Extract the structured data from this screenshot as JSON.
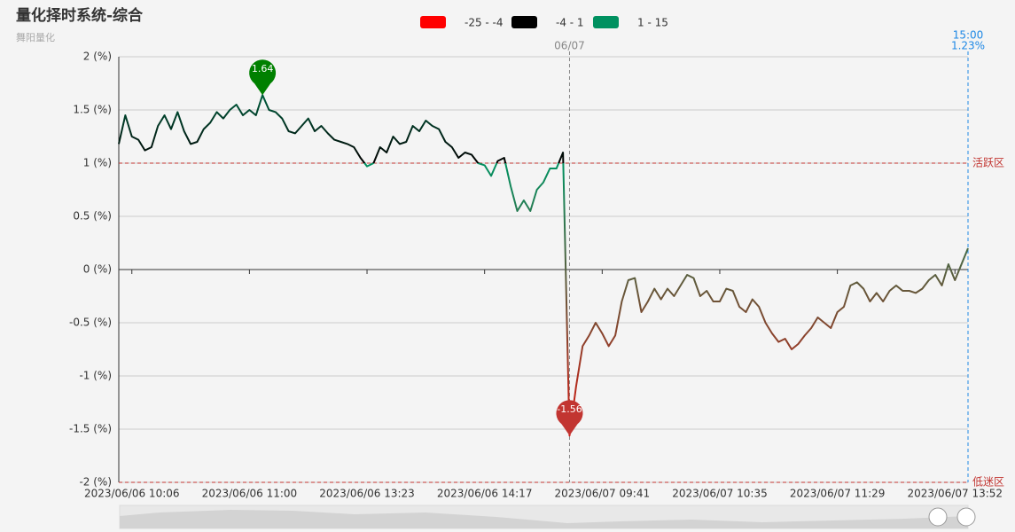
{
  "chart_data": {
    "type": "line",
    "title": "量化择时系统-综合",
    "subtitle": "舞阳量化",
    "ylim": [
      -2,
      2
    ],
    "yticks": [
      {
        "value": 2,
        "label": "2 (%)"
      },
      {
        "value": 1.5,
        "label": "1.5 (%)"
      },
      {
        "value": 1,
        "label": "1 (%)"
      },
      {
        "value": 0.5,
        "label": "0.5 (%)"
      },
      {
        "value": 0,
        "label": "0 (%)"
      },
      {
        "value": -0.5,
        "label": "-0.5 (%)"
      },
      {
        "value": -1,
        "label": "-1 (%)"
      },
      {
        "value": -1.5,
        "label": "-1.5 (%)"
      },
      {
        "value": -2,
        "label": "-2 (%)"
      }
    ],
    "grid": true,
    "visual_map": [
      {
        "label": "-25 - -4",
        "min": -25,
        "max": -4,
        "color": "#ff0000"
      },
      {
        "label": "-4 - 1",
        "min": -4,
        "max": 1,
        "color": "#000000"
      },
      {
        "label": "1 - 15",
        "min": 1,
        "max": 15,
        "color": "#009160"
      }
    ],
    "mark_points": [
      {
        "type": "max",
        "value": 1.64,
        "color": "#008000"
      },
      {
        "type": "min",
        "value": -1.56,
        "color": "#c23531"
      }
    ],
    "mark_lines": [
      {
        "value": 1,
        "label": "活跃区"
      },
      {
        "value": -2,
        "label": "低迷区"
      }
    ],
    "mark_line_color": "#c23531",
    "vertical_lines": [
      {
        "index": 69,
        "label": "06/07",
        "color": "#888888"
      },
      {
        "index": 130,
        "label": "15:00",
        "value": 1.23,
        "value_label": "1.23%",
        "color": "#1e88e5"
      }
    ],
    "categories": [
      null,
      null,
      "2023/06/06 10:06",
      null,
      null,
      null,
      null,
      null,
      null,
      null,
      null,
      null,
      null,
      null,
      null,
      null,
      null,
      null,
      null,
      null,
      "2023/06/06 11:00",
      null,
      null,
      null,
      null,
      null,
      null,
      null,
      null,
      null,
      null,
      null,
      null,
      null,
      null,
      null,
      null,
      null,
      "2023/06/06 13:23",
      null,
      null,
      null,
      null,
      null,
      null,
      null,
      null,
      null,
      null,
      null,
      null,
      null,
      null,
      null,
      null,
      null,
      "2023/06/06 14:17",
      null,
      null,
      null,
      null,
      null,
      null,
      null,
      null,
      null,
      null,
      null,
      null,
      null,
      null,
      null,
      null,
      null,
      "2023/06/07 09:41",
      null,
      null,
      null,
      null,
      null,
      null,
      null,
      null,
      null,
      null,
      null,
      null,
      null,
      null,
      null,
      null,
      null,
      "2023/06/07 10:35",
      null,
      null,
      null,
      null,
      null,
      null,
      null,
      null,
      null,
      null,
      null,
      null,
      null,
      null,
      null,
      null,
      null,
      "2023/06/07 11:29",
      null,
      null,
      null,
      null,
      null,
      null,
      null,
      null,
      null,
      null,
      null,
      null,
      null,
      null,
      null,
      null,
      null,
      "2023/06/07 13:52",
      null,
      null
    ],
    "values": [
      1.18,
      1.45,
      1.25,
      1.22,
      1.12,
      1.15,
      1.35,
      1.45,
      1.32,
      1.48,
      1.3,
      1.18,
      1.2,
      1.32,
      1.38,
      1.48,
      1.42,
      1.5,
      1.55,
      1.45,
      1.5,
      1.45,
      1.64,
      1.5,
      1.48,
      1.42,
      1.3,
      1.28,
      1.35,
      1.42,
      1.3,
      1.35,
      1.28,
      1.22,
      1.2,
      1.18,
      1.15,
      1.05,
      0.97,
      1.0,
      1.15,
      1.1,
      1.25,
      1.18,
      1.2,
      1.35,
      1.3,
      1.4,
      1.35,
      1.32,
      1.2,
      1.15,
      1.05,
      1.1,
      1.08,
      1.0,
      0.98,
      0.88,
      1.02,
      1.05,
      0.78,
      0.55,
      0.65,
      0.55,
      0.75,
      0.82,
      0.95,
      0.95,
      1.1,
      -1.56,
      -1.1,
      -0.72,
      -0.62,
      -0.5,
      -0.6,
      -0.72,
      -0.62,
      -0.3,
      -0.1,
      -0.08,
      -0.4,
      -0.3,
      -0.18,
      -0.28,
      -0.18,
      -0.25,
      -0.15,
      -0.05,
      -0.08,
      -0.25,
      -0.2,
      -0.3,
      -0.3,
      -0.18,
      -0.2,
      -0.35,
      -0.4,
      -0.28,
      -0.35,
      -0.5,
      -0.6,
      -0.68,
      -0.65,
      -0.75,
      -0.7,
      -0.62,
      -0.55,
      -0.45,
      -0.5,
      -0.55,
      -0.4,
      -0.35,
      -0.15,
      -0.12,
      -0.18,
      -0.3,
      -0.22,
      -0.3,
      -0.2,
      -0.15,
      -0.2,
      -0.2,
      -0.22,
      -0.18,
      -0.1,
      -0.05,
      -0.15,
      0.05,
      -0.1,
      0.05,
      0.2
    ]
  }
}
